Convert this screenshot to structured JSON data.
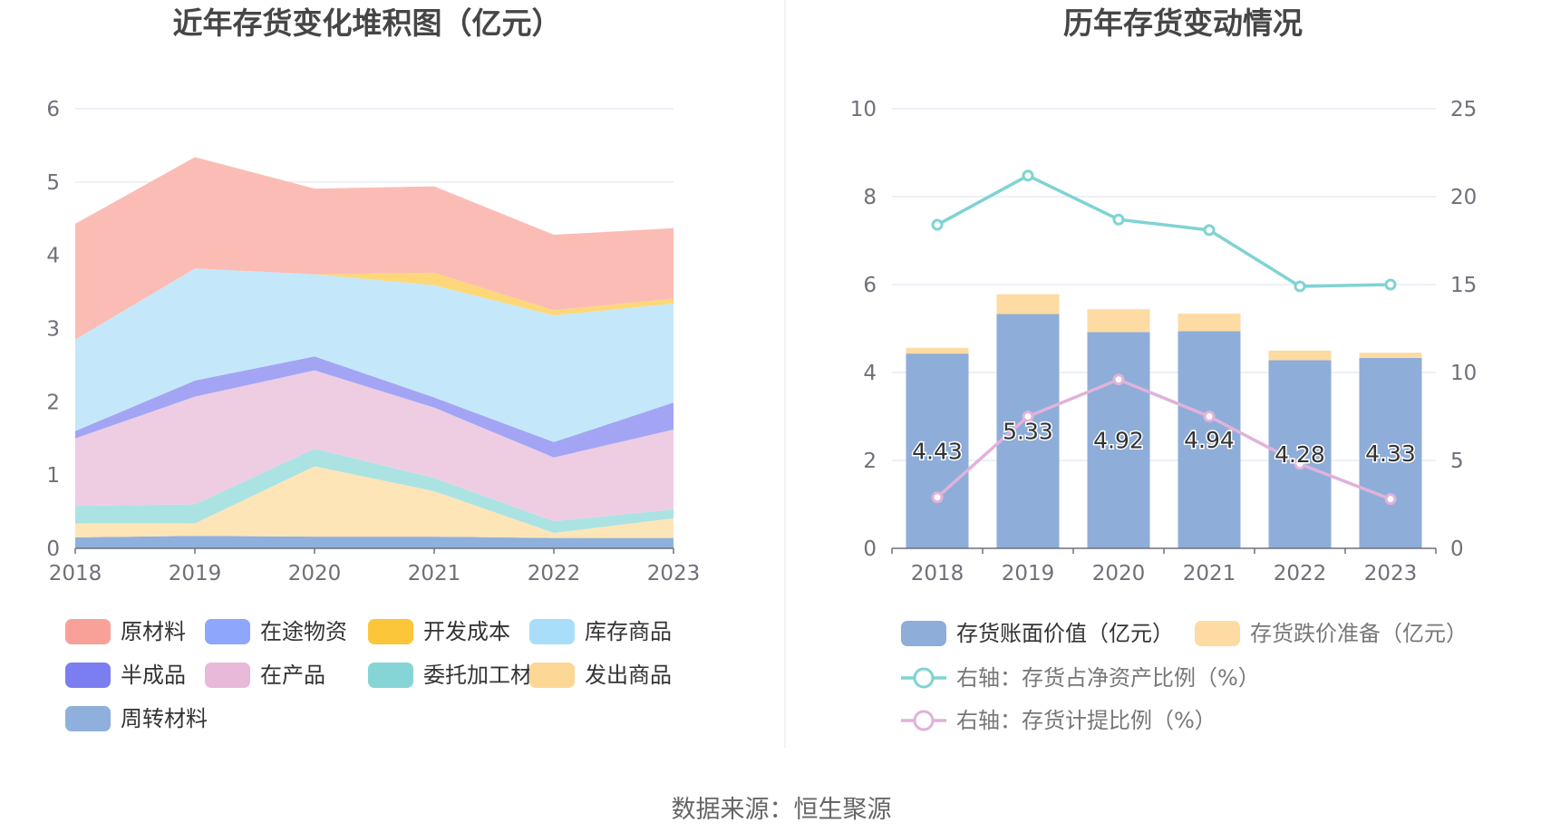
{
  "source": "数据来源：恒生聚源",
  "chart_data": [
    {
      "type": "area",
      "stacked": true,
      "title": "近年存货变化堆积图（亿元）",
      "categories": [
        "2018",
        "2019",
        "2020",
        "2021",
        "2022",
        "2023"
      ],
      "yticks": [
        "0",
        "1",
        "2",
        "3",
        "4",
        "5",
        "6"
      ],
      "ylim": [
        0,
        6
      ],
      "series": [
        {
          "name": "周转材料",
          "color": "#8fb0dc",
          "values": [
            0.15,
            0.17,
            0.16,
            0.16,
            0.14,
            0.14
          ]
        },
        {
          "name": "发出商品",
          "color": "#fde5b8",
          "values": [
            0.19,
            0.17,
            0.96,
            0.62,
            0.07,
            0.27
          ]
        },
        {
          "name": "委托加工材料",
          "color": "#abe3e3",
          "values": [
            0.24,
            0.26,
            0.24,
            0.18,
            0.16,
            0.12
          ]
        },
        {
          "name": "在产品",
          "color": "#eecde3",
          "values": [
            0.92,
            1.47,
            1.07,
            0.96,
            0.87,
            1.09
          ]
        },
        {
          "name": "半成品",
          "color": "#a3a5f4",
          "values": [
            0.1,
            0.22,
            0.19,
            0.14,
            0.21,
            0.37
          ]
        },
        {
          "name": "库存商品",
          "color": "#c4e8f9",
          "values": [
            1.25,
            1.53,
            1.12,
            1.53,
            1.73,
            1.35
          ]
        },
        {
          "name": "开发成本",
          "color": "#fdd77a",
          "values": [
            0.0,
            0.0,
            0.0,
            0.17,
            0.07,
            0.07
          ]
        },
        {
          "name": "在途物资",
          "color": "#8ea6fb",
          "values": [
            0.0,
            0.0,
            0.0,
            0.0,
            0.0,
            0.0
          ]
        },
        {
          "name": "原材料",
          "color": "#fbbcb5",
          "values": [
            1.58,
            1.52,
            1.17,
            1.18,
            1.03,
            0.96
          ]
        }
      ],
      "legend": [
        {
          "name": "原材料",
          "color": "#f8a199"
        },
        {
          "name": "在途物资",
          "color": "#8ea6fb"
        },
        {
          "name": "开发成本",
          "color": "#fbc63a"
        },
        {
          "name": "库存商品",
          "color": "#a9defa"
        },
        {
          "name": "半成品",
          "color": "#7b7ef0"
        },
        {
          "name": "在产品",
          "color": "#e8b9d8"
        },
        {
          "name": "委托加工材料",
          "color": "#86d5d6"
        },
        {
          "name": "发出商品",
          "color": "#fdd795"
        },
        {
          "name": "周转材料",
          "color": "#8fb0dc"
        }
      ]
    },
    {
      "type": "bar",
      "stacked": true,
      "title": "历年存货变动情况",
      "categories": [
        "2018",
        "2019",
        "2020",
        "2021",
        "2022",
        "2023"
      ],
      "yticks_left": [
        "0",
        "2",
        "4",
        "6",
        "8",
        "10"
      ],
      "ylim_left": [
        0,
        10
      ],
      "yticks_right": [
        "0",
        "5",
        "10",
        "15",
        "20",
        "25"
      ],
      "ylim_right": [
        0,
        25
      ],
      "bar_series": [
        {
          "name": "存货账面价值（亿元）",
          "color": "#8eadd9",
          "values": [
            4.43,
            5.33,
            4.92,
            4.94,
            4.28,
            4.33
          ],
          "labels": [
            "4.43",
            "5.33",
            "4.92",
            "4.94",
            "4.28",
            "4.33"
          ]
        },
        {
          "name": "存货跌价准备（亿元）",
          "color": "#fddba3",
          "values": [
            0.13,
            0.45,
            0.52,
            0.4,
            0.22,
            0.12
          ]
        }
      ],
      "line_series": [
        {
          "name": "右轴：存货占净资产比例（%）",
          "color": "#7fd3d3",
          "axis": "right",
          "values": [
            18.4,
            21.2,
            18.7,
            18.1,
            14.9,
            15.0
          ]
        },
        {
          "name": "右轴：存货计提比例（%）",
          "color": "#e0b2da",
          "axis": "right",
          "values": [
            2.9,
            7.5,
            9.6,
            7.5,
            4.8,
            2.8
          ]
        }
      ]
    }
  ]
}
